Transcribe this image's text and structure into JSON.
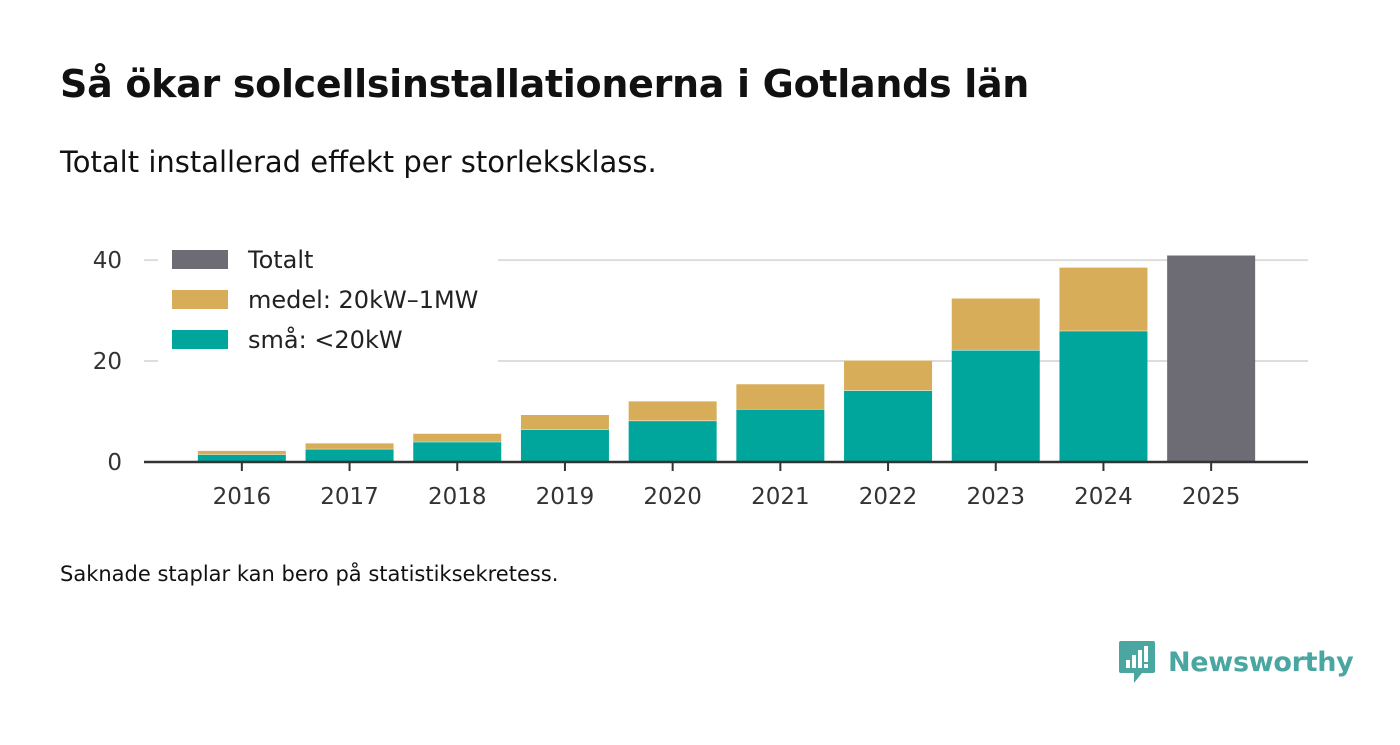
{
  "header": {
    "title": "Så ökar solcellsinstallationerna i Gotlands län",
    "subtitle": "Totalt installerad effekt per storleksklass."
  },
  "footer": {
    "note": "Saknade staplar kan bero på statistiksekretess.",
    "brand": "Newsworthy"
  },
  "colors": {
    "total": "#6d6b73",
    "medium": "#d8ad5a",
    "small": "#00a59b",
    "brand": "#4aa6a0"
  },
  "chart_data": {
    "type": "bar",
    "stacked": true,
    "title": "Så ökar solcellsinstallationerna i Gotlands län",
    "subtitle": "Totalt installerad effekt per storleksklass.",
    "xlabel": "",
    "ylabel": "",
    "categories": [
      "2016",
      "2017",
      "2018",
      "2019",
      "2020",
      "2021",
      "2022",
      "2023",
      "2024",
      "2025"
    ],
    "series": [
      {
        "key": "small",
        "name": "små: <20kW",
        "values": [
          1.5,
          2.6,
          4.0,
          6.5,
          8.2,
          10.5,
          14.2,
          22.2,
          26.0,
          null
        ]
      },
      {
        "key": "medium",
        "name": "medel: 20kW–1MW",
        "values": [
          0.8,
          1.2,
          1.7,
          2.9,
          3.9,
          5.0,
          6.0,
          10.3,
          12.6,
          null
        ]
      },
      {
        "key": "total",
        "name": "Totalt",
        "values": [
          null,
          null,
          null,
          null,
          null,
          null,
          null,
          null,
          null,
          41.0
        ]
      }
    ],
    "legend": [
      {
        "key": "total",
        "label": "Totalt"
      },
      {
        "key": "medium",
        "label": "medel: 20kW–1MW"
      },
      {
        "key": "small",
        "label": "små: <20kW"
      }
    ],
    "legend_position": "top-left",
    "ylim": [
      0,
      42
    ],
    "yticks": [
      0,
      20,
      40
    ],
    "grid": true
  }
}
